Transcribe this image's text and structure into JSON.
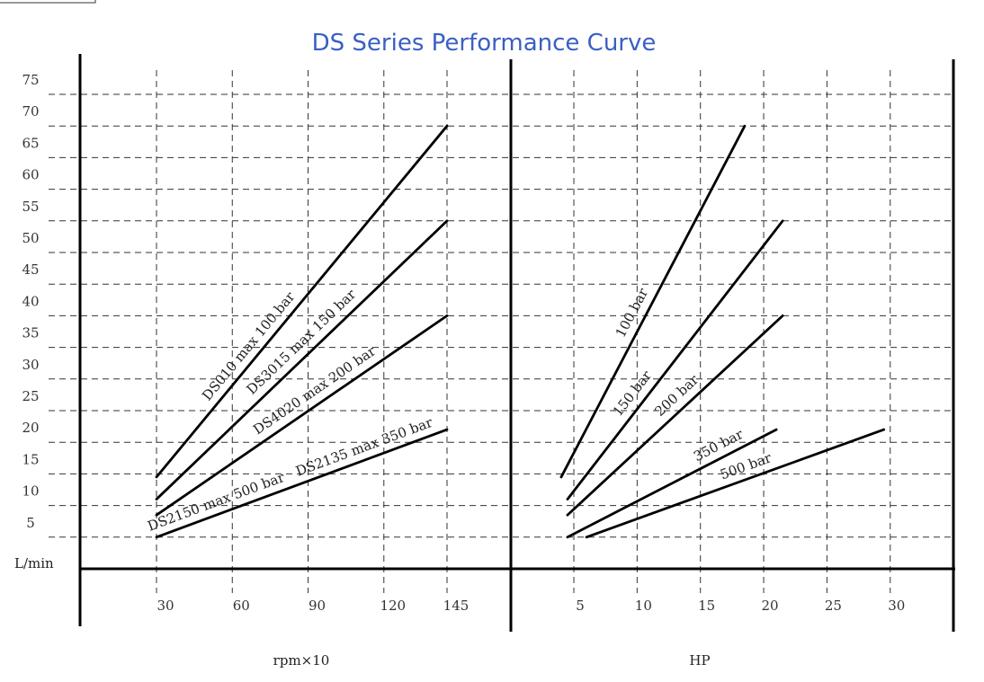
{
  "title": "DS Series Performance Curve",
  "ylabel": "L/min",
  "y_ticks": [
    5,
    10,
    15,
    20,
    25,
    30,
    35,
    40,
    45,
    50,
    55,
    60,
    65,
    70,
    75
  ],
  "chart_data": [
    {
      "type": "line",
      "xlabel": "rpm×10",
      "ylabel": "L/min",
      "x_ticks": [
        30,
        60,
        90,
        120,
        145
      ],
      "series": [
        {
          "name": "DS010 max 100 bar",
          "points": [
            [
              30,
              14.5
            ],
            [
              145,
              70
            ]
          ]
        },
        {
          "name": "DS3015 max 150 bar",
          "points": [
            [
              30,
              11
            ],
            [
              145,
              55
            ]
          ]
        },
        {
          "name": "DS4020 max 200 bar",
          "points": [
            [
              30,
              8.5
            ],
            [
              145,
              40
            ]
          ]
        },
        {
          "name": "DS2135 max 350 bar",
          "points": [
            [
              30,
              5
            ],
            [
              145,
              22
            ]
          ]
        },
        {
          "name": "DS2150 max 500 bar",
          "points": [
            [
              30,
              5
            ],
            [
              145,
              22
            ]
          ]
        }
      ]
    },
    {
      "type": "line",
      "xlabel": "HP",
      "ylabel": "L/min",
      "x_ticks": [
        5,
        10,
        15,
        20,
        25,
        30
      ],
      "series": [
        {
          "name": "100 bar",
          "points": [
            [
              4,
              14.5
            ],
            [
              18.5,
              70
            ]
          ]
        },
        {
          "name": "150 bar",
          "points": [
            [
              4.5,
              11
            ],
            [
              21.5,
              55
            ]
          ]
        },
        {
          "name": "200 bar",
          "points": [
            [
              4.5,
              8.5
            ],
            [
              21.5,
              40
            ]
          ]
        },
        {
          "name": "350 bar",
          "points": [
            [
              4.5,
              5
            ],
            [
              21,
              22
            ]
          ]
        },
        {
          "name": "500 bar",
          "points": [
            [
              6,
              5
            ],
            [
              29.5,
              22
            ]
          ]
        }
      ]
    }
  ]
}
